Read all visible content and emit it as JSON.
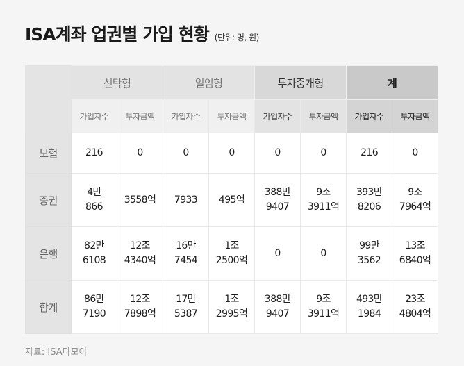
{
  "title": "ISA계좌 업권별 가입 현황",
  "unit": "(단위: 명, 원)",
  "groups": [
    "신탁형",
    "일임형",
    "투자중개형",
    "계"
  ],
  "subheaders": [
    "가입자수",
    "투자금액",
    "가입자수",
    "투자금액",
    "가입자수",
    "투자금액",
    "가입자수",
    "투자금액"
  ],
  "rows": [
    {
      "label": "보험",
      "cells": [
        [
          "216"
        ],
        [
          "0"
        ],
        [
          "0"
        ],
        [
          "0"
        ],
        [
          "0"
        ],
        [
          "0"
        ],
        [
          "216"
        ],
        [
          "0"
        ]
      ]
    },
    {
      "label": "증권",
      "cells": [
        [
          "4만",
          "866"
        ],
        [
          "3558억"
        ],
        [
          "7933"
        ],
        [
          "495억"
        ],
        [
          "388만",
          "9407"
        ],
        [
          "9조",
          "3911억"
        ],
        [
          "393만",
          "8206"
        ],
        [
          "9조",
          "7964억"
        ]
      ]
    },
    {
      "label": "은행",
      "cells": [
        [
          "82만",
          "6108"
        ],
        [
          "12조",
          "4340억"
        ],
        [
          "16만",
          "7454"
        ],
        [
          "1조",
          "2500억"
        ],
        [
          "0"
        ],
        [
          "0"
        ],
        [
          "99만",
          "3562"
        ],
        [
          "13조",
          "6840억"
        ]
      ]
    },
    {
      "label": "합계",
      "cells": [
        [
          "86만",
          "7190"
        ],
        [
          "12조",
          "7898억"
        ],
        [
          "17만",
          "5387"
        ],
        [
          "1조",
          "2995억"
        ],
        [
          "388만",
          "9407"
        ],
        [
          "9조",
          "3911억"
        ],
        [
          "493만",
          "1984"
        ],
        [
          "23조",
          "4804억"
        ]
      ]
    }
  ],
  "source": "자료: ISA다모아"
}
